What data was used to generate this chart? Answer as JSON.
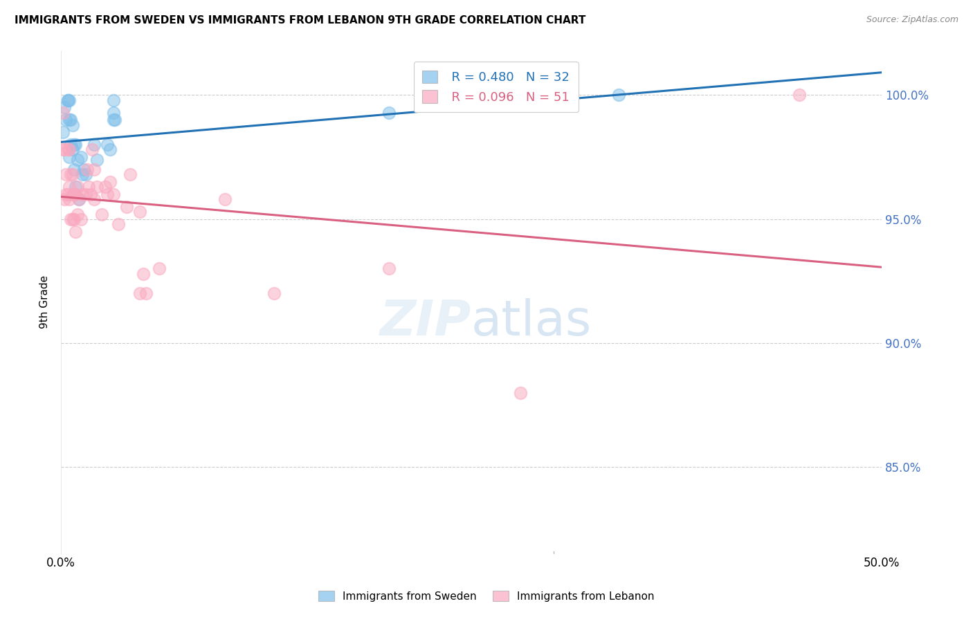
{
  "title": "IMMIGRANTS FROM SWEDEN VS IMMIGRANTS FROM LEBANON 9TH GRADE CORRELATION CHART",
  "source": "Source: ZipAtlas.com",
  "ylabel": "9th Grade",
  "xmin": 0.0,
  "xmax": 0.5,
  "ymin": 0.815,
  "ymax": 1.018,
  "legend_r_sweden": "R = 0.480",
  "legend_n_sweden": "N = 32",
  "legend_r_lebanon": "R = 0.096",
  "legend_n_lebanon": "N = 51",
  "sweden_color": "#7fbfea",
  "lebanon_color": "#f9a8bf",
  "sweden_line_color": "#2171b5",
  "lebanon_line_color": "#d96080",
  "sweden_x": [
    0.001,
    0.002,
    0.003,
    0.004,
    0.004,
    0.005,
    0.005,
    0.005,
    0.006,
    0.006,
    0.007,
    0.007,
    0.008,
    0.008,
    0.009,
    0.009,
    0.01,
    0.011,
    0.012,
    0.013,
    0.014,
    0.015,
    0.02,
    0.022,
    0.028,
    0.03,
    0.032,
    0.032,
    0.032,
    0.033,
    0.2,
    0.34
  ],
  "sweden_y": [
    0.985,
    0.995,
    0.99,
    0.998,
    0.998,
    0.975,
    0.99,
    0.998,
    0.98,
    0.99,
    0.978,
    0.988,
    0.97,
    0.98,
    0.963,
    0.98,
    0.974,
    0.958,
    0.975,
    0.968,
    0.97,
    0.968,
    0.98,
    0.974,
    0.98,
    0.978,
    0.99,
    0.993,
    0.998,
    0.99,
    0.993,
    1.0
  ],
  "lebanon_x": [
    0.001,
    0.001,
    0.002,
    0.002,
    0.003,
    0.003,
    0.004,
    0.004,
    0.005,
    0.005,
    0.005,
    0.006,
    0.006,
    0.007,
    0.007,
    0.007,
    0.008,
    0.008,
    0.009,
    0.009,
    0.01,
    0.01,
    0.011,
    0.012,
    0.013,
    0.015,
    0.016,
    0.017,
    0.018,
    0.019,
    0.02,
    0.02,
    0.022,
    0.025,
    0.027,
    0.028,
    0.03,
    0.032,
    0.035,
    0.04,
    0.042,
    0.048,
    0.048,
    0.05,
    0.052,
    0.06,
    0.1,
    0.13,
    0.2,
    0.28,
    0.45
  ],
  "lebanon_y": [
    0.978,
    0.993,
    0.958,
    0.978,
    0.96,
    0.968,
    0.96,
    0.978,
    0.958,
    0.963,
    0.978,
    0.95,
    0.968,
    0.95,
    0.96,
    0.968,
    0.95,
    0.96,
    0.945,
    0.96,
    0.952,
    0.963,
    0.958,
    0.95,
    0.96,
    0.96,
    0.97,
    0.963,
    0.96,
    0.978,
    0.958,
    0.97,
    0.963,
    0.952,
    0.963,
    0.96,
    0.965,
    0.96,
    0.948,
    0.955,
    0.968,
    0.953,
    0.92,
    0.928,
    0.92,
    0.93,
    0.958,
    0.92,
    0.93,
    0.88,
    1.0
  ],
  "y_tick_vals": [
    0.85,
    0.9,
    0.95,
    1.0
  ],
  "y_tick_labels": [
    "85.0%",
    "90.0%",
    "95.0%",
    "100.0%"
  ]
}
